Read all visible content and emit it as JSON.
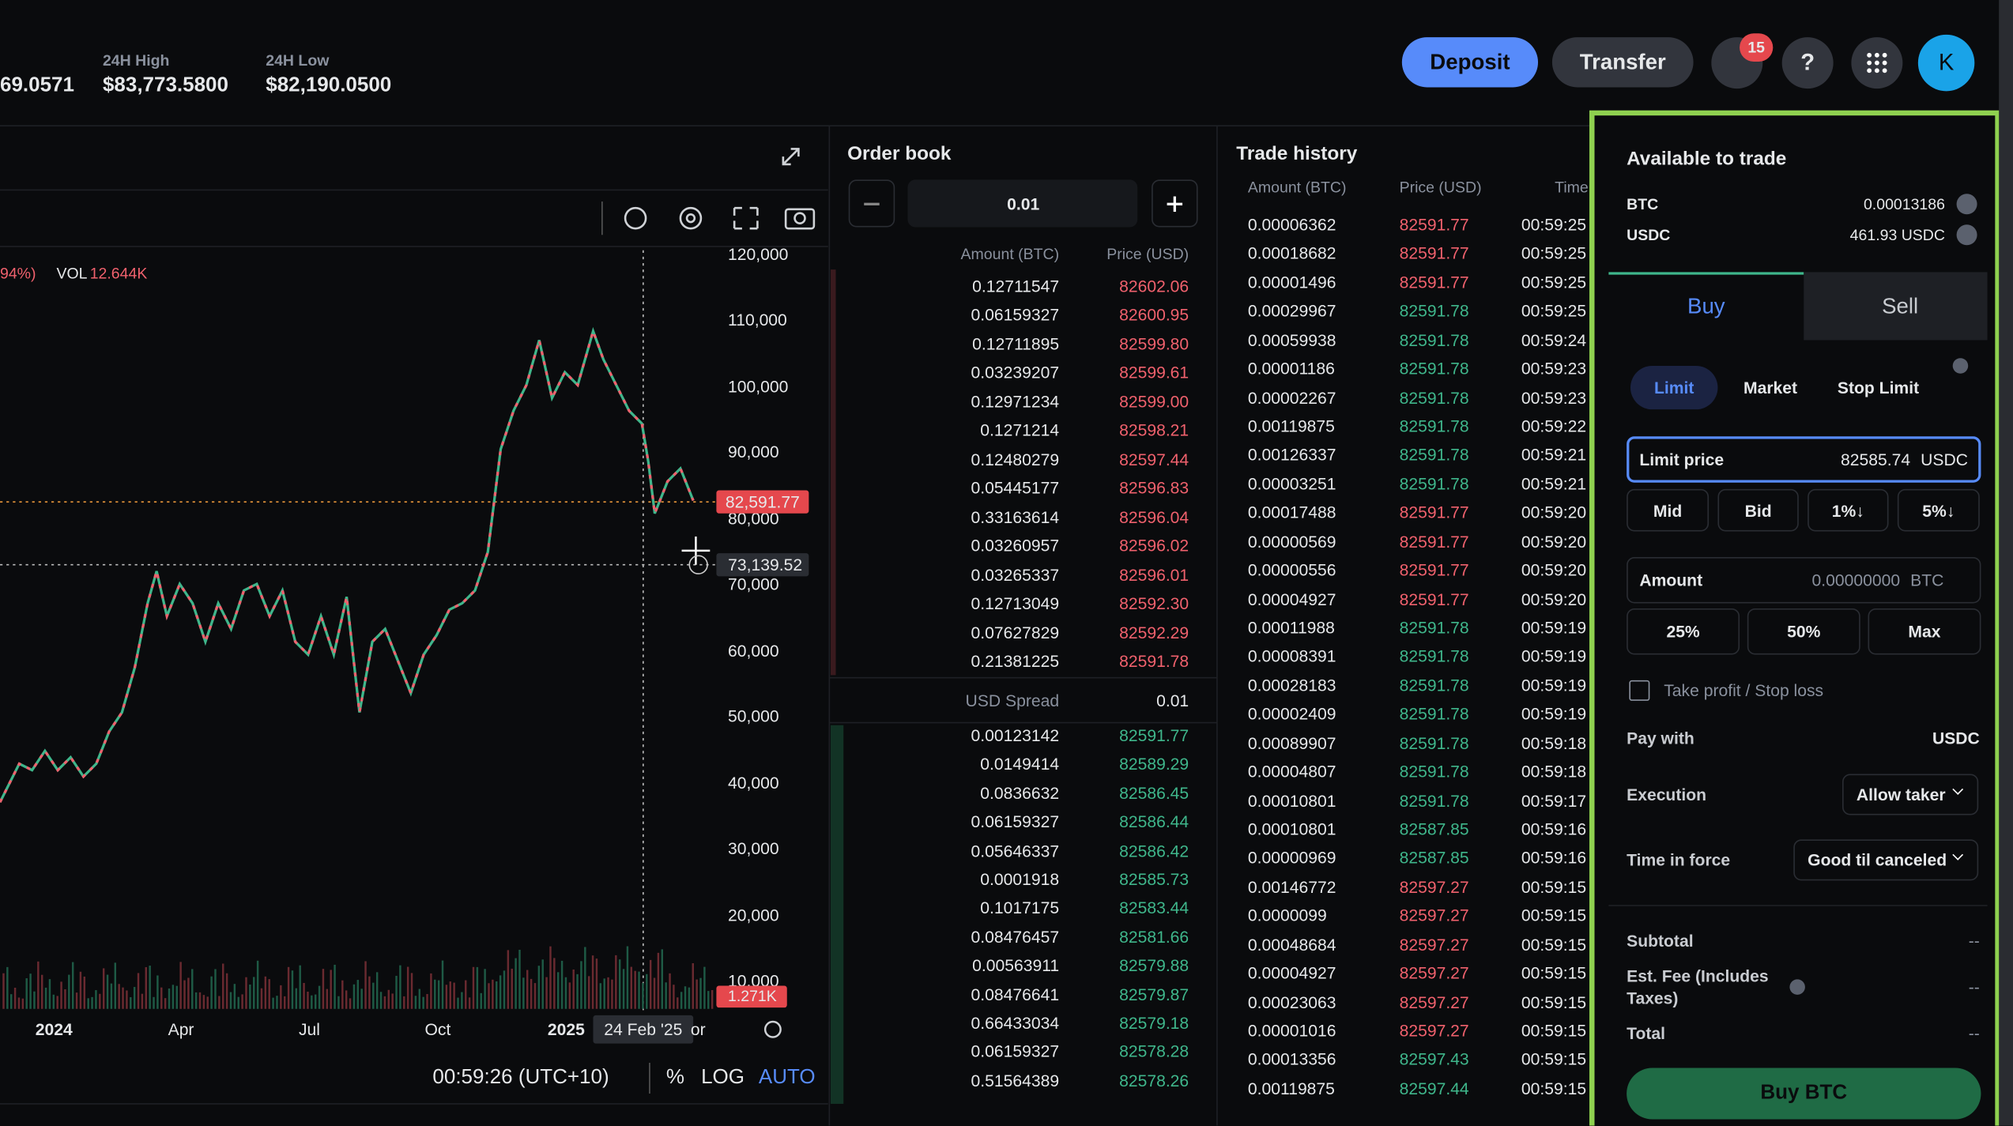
{
  "header": {
    "last_price_partial": "69.0571",
    "stats": [
      {
        "label": "24H High",
        "value": "$83,773.5800"
      },
      {
        "label": "24H Low",
        "value": "$82,190.0500"
      }
    ],
    "buttons": [
      "Deposit",
      "Transfer"
    ],
    "notifications": "15",
    "help": "?",
    "avatar": "K"
  },
  "chart": {
    "legend": {
      "change": "94%)",
      "vol_label": "VOL",
      "vol_value": "12.644K"
    },
    "price_axis": [
      "120,000",
      "110,000",
      "100,000",
      "90,000",
      "80,000",
      "70,000",
      "60,000",
      "50,000",
      "40,000",
      "30,000",
      "20,000",
      "10,000"
    ],
    "last_price_tag": "82,591.77",
    "cursor_price_tag": "73,139.52",
    "volume_tag": "1.271K",
    "time_axis": [
      "2024",
      "Apr",
      "Jul",
      "Oct",
      "2025"
    ],
    "cursor_date": "24 Feb '25",
    "time_axis_partial": "or",
    "clock": "00:59:26 (UTC+10)",
    "scale_options": [
      "%",
      "LOG",
      "AUTO"
    ]
  },
  "order_book": {
    "title": "Order book",
    "step": "0.01",
    "headers": [
      "Amount (BTC)",
      "Price (USD)"
    ],
    "asks": [
      [
        "0.12711547",
        "82602.06"
      ],
      [
        "0.06159327",
        "82600.95"
      ],
      [
        "0.12711895",
        "82599.80"
      ],
      [
        "0.03239207",
        "82599.61"
      ],
      [
        "0.12971234",
        "82599.00"
      ],
      [
        "0.1271214",
        "82598.21"
      ],
      [
        "0.12480279",
        "82597.44"
      ],
      [
        "0.05445177",
        "82596.83"
      ],
      [
        "0.33163614",
        "82596.04"
      ],
      [
        "0.03260957",
        "82596.02"
      ],
      [
        "0.03265337",
        "82596.01"
      ],
      [
        "0.12713049",
        "82592.30"
      ],
      [
        "0.07627829",
        "82592.29"
      ],
      [
        "0.21381225",
        "82591.78"
      ]
    ],
    "spread_label": "USD Spread",
    "spread": "0.01",
    "bids": [
      [
        "0.00123142",
        "82591.77"
      ],
      [
        "0.0149414",
        "82589.29"
      ],
      [
        "0.0836632",
        "82586.45"
      ],
      [
        "0.06159327",
        "82586.44"
      ],
      [
        "0.05646337",
        "82586.42"
      ],
      [
        "0.0001918",
        "82585.73"
      ],
      [
        "0.1017175",
        "82583.44"
      ],
      [
        "0.08476457",
        "82581.66"
      ],
      [
        "0.00563911",
        "82579.88"
      ],
      [
        "0.08476641",
        "82579.87"
      ],
      [
        "0.66433034",
        "82579.18"
      ],
      [
        "0.06159327",
        "82578.28"
      ],
      [
        "0.51564389",
        "82578.26"
      ]
    ]
  },
  "trade_history": {
    "title": "Trade history",
    "headers": [
      "Amount (BTC)",
      "Price (USD)",
      "Time"
    ],
    "rows": [
      [
        "0.00006362",
        "82591.77",
        "00:59:25",
        "#f0616d"
      ],
      [
        "0.00018682",
        "82591.77",
        "00:59:25",
        "#f0616d"
      ],
      [
        "0.00001496",
        "82591.77",
        "00:59:25",
        "#f0616d"
      ],
      [
        "0.00029967",
        "82591.78",
        "00:59:25",
        "#3fb68b"
      ],
      [
        "0.00059938",
        "82591.78",
        "00:59:24",
        "#3fb68b"
      ],
      [
        "0.00001186",
        "82591.78",
        "00:59:23",
        "#3fb68b"
      ],
      [
        "0.00002267",
        "82591.78",
        "00:59:23",
        "#3fb68b"
      ],
      [
        "0.00119875",
        "82591.78",
        "00:59:22",
        "#3fb68b"
      ],
      [
        "0.00126337",
        "82591.78",
        "00:59:21",
        "#3fb68b"
      ],
      [
        "0.00003251",
        "82591.78",
        "00:59:21",
        "#3fb68b"
      ],
      [
        "0.00017488",
        "82591.77",
        "00:59:20",
        "#f0616d"
      ],
      [
        "0.00000569",
        "82591.77",
        "00:59:20",
        "#f0616d"
      ],
      [
        "0.00000556",
        "82591.77",
        "00:59:20",
        "#f0616d"
      ],
      [
        "0.00004927",
        "82591.77",
        "00:59:20",
        "#f0616d"
      ],
      [
        "0.00011988",
        "82591.78",
        "00:59:19",
        "#3fb68b"
      ],
      [
        "0.00008391",
        "82591.78",
        "00:59:19",
        "#3fb68b"
      ],
      [
        "0.00028183",
        "82591.78",
        "00:59:19",
        "#3fb68b"
      ],
      [
        "0.00002409",
        "82591.78",
        "00:59:19",
        "#3fb68b"
      ],
      [
        "0.00089907",
        "82591.78",
        "00:59:18",
        "#3fb68b"
      ],
      [
        "0.00004807",
        "82591.78",
        "00:59:18",
        "#3fb68b"
      ],
      [
        "0.00010801",
        "82591.78",
        "00:59:17",
        "#3fb68b"
      ],
      [
        "0.00010801",
        "82587.85",
        "00:59:16",
        "#3fb68b"
      ],
      [
        "0.00000969",
        "82587.85",
        "00:59:16",
        "#3fb68b"
      ],
      [
        "0.00146772",
        "82597.27",
        "00:59:15",
        "#f0616d"
      ],
      [
        "0.0000099",
        "82597.27",
        "00:59:15",
        "#f0616d"
      ],
      [
        "0.00048684",
        "82597.27",
        "00:59:15",
        "#f0616d"
      ],
      [
        "0.00004927",
        "82597.27",
        "00:59:15",
        "#f0616d"
      ],
      [
        "0.00023063",
        "82597.27",
        "00:59:15",
        "#f0616d"
      ],
      [
        "0.00001016",
        "82597.27",
        "00:59:15",
        "#f0616d"
      ],
      [
        "0.00013356",
        "82597.43",
        "00:59:15",
        "#3fb68b"
      ],
      [
        "0.00119875",
        "82597.44",
        "00:59:15",
        "#3fb68b"
      ]
    ]
  },
  "trade_panel": {
    "title": "Available to trade",
    "balances": [
      [
        "BTC",
        "0.00013186"
      ],
      [
        "USDC",
        "461.93 USDC"
      ]
    ],
    "tabs": [
      "Buy",
      "Sell"
    ],
    "order_types": [
      "Limit",
      "Market",
      "Stop Limit"
    ],
    "limit_price": {
      "label": "Limit price",
      "value": "82585.74",
      "unit": "USDC"
    },
    "price_presets": [
      "Mid",
      "Bid",
      "1%↓",
      "5%↓"
    ],
    "amount": {
      "label": "Amount",
      "value": "0.00000000",
      "unit": "BTC"
    },
    "amount_presets": [
      "25%",
      "50%",
      "Max"
    ],
    "tp_sl": "Take profit / Stop loss",
    "pay_with": {
      "label": "Pay with",
      "value": "USDC"
    },
    "execution": {
      "label": "Execution",
      "value": "Allow taker"
    },
    "time_in_force": {
      "label": "Time in force",
      "value": "Good til canceled"
    },
    "summary": [
      [
        "Subtotal",
        "--"
      ],
      [
        "Est. Fee (Includes Taxes)",
        "--"
      ],
      [
        "Total",
        "--"
      ]
    ],
    "submit": "Buy BTC"
  }
}
